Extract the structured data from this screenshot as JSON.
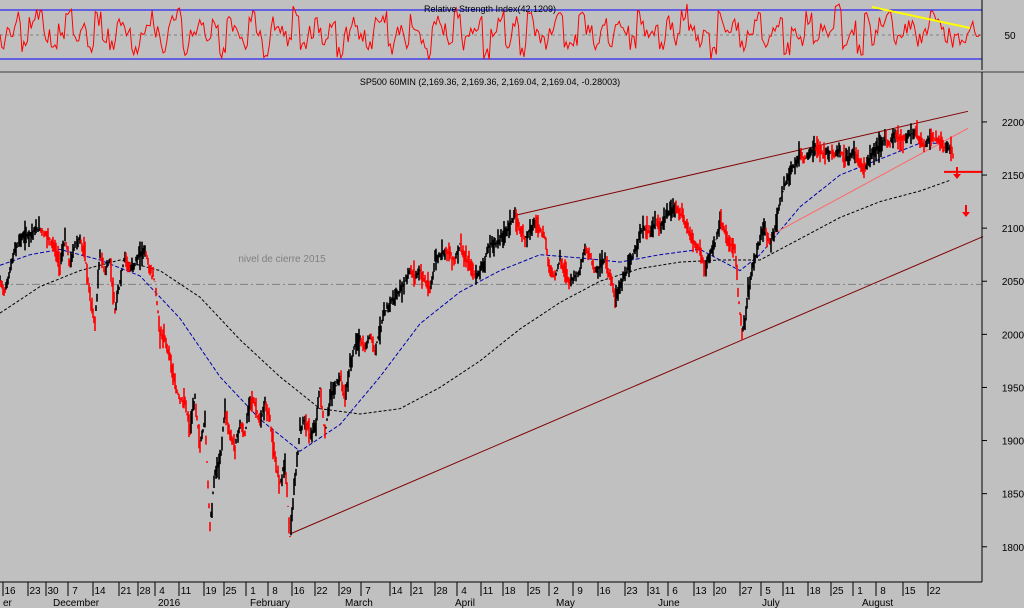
{
  "rsi_panel": {
    "title": "Relative Strength Index(42.1209)",
    "upper_level": 70,
    "mid_level": 50,
    "lower_level": 30,
    "y_tick_label": "50",
    "colors": {
      "upper": "#0000ff",
      "lower": "#0000ff",
      "mid": "#808080",
      "line": "#ff0000",
      "trendline": "#ffff00"
    }
  },
  "main_panel": {
    "title": "SP500 60MIN (2,169.36, 2,169.36, 2,169.04, 2,169.04, -0.28003)",
    "annotation": "nivel de cierre 2015",
    "reference_level": 2047
  },
  "chart_data": {
    "type": "line",
    "title": "SP500 60MIN (2,169.36, 2,169.36, 2,169.04, 2,169.04, -0.28003)",
    "ylim": [
      1780,
      2215
    ],
    "y_ticks": [
      "1800",
      "1850",
      "1900",
      "1950",
      "2000",
      "2050",
      "2100",
      "2150",
      "2200"
    ],
    "x_tick_labels": [
      "16",
      "23",
      "30",
      "7",
      "14",
      "21",
      "28",
      "4",
      "11",
      "19",
      "25",
      "1",
      "8",
      "16",
      "22",
      "29",
      "7",
      "14",
      "21",
      "28",
      "4",
      "11",
      "18",
      "25",
      "2",
      "9",
      "16",
      "23",
      "31",
      "6",
      "13",
      "20",
      "27",
      "5",
      "11",
      "18",
      "25",
      "1",
      "8",
      "15",
      "22"
    ],
    "month_labels": [
      "er",
      "December",
      "2016",
      "February",
      "March",
      "April",
      "May",
      "June",
      "July",
      "August"
    ],
    "series": [
      {
        "name": "SP500",
        "color": "#000000",
        "points": [
          [
            0,
            2050
          ],
          [
            5,
            2040
          ],
          [
            10,
            2060
          ],
          [
            15,
            2080
          ],
          [
            20,
            2090
          ],
          [
            30,
            2095
          ],
          [
            40,
            2100
          ],
          [
            50,
            2090
          ],
          [
            55,
            2080
          ],
          [
            60,
            2065
          ],
          [
            65,
            2090
          ],
          [
            70,
            2065
          ],
          [
            75,
            2085
          ],
          [
            80,
            2090
          ],
          [
            85,
            2075
          ],
          [
            90,
            2035
          ],
          [
            95,
            2010
          ],
          [
            100,
            2075
          ],
          [
            105,
            2060
          ],
          [
            110,
            2070
          ],
          [
            115,
            2020
          ],
          [
            120,
            2050
          ],
          [
            125,
            2075
          ],
          [
            130,
            2060
          ],
          [
            140,
            2075
          ],
          [
            145,
            2080
          ],
          [
            150,
            2060
          ],
          [
            155,
            2050
          ],
          [
            160,
            2000
          ],
          [
            165,
            1995
          ],
          [
            170,
            1980
          ],
          [
            175,
            1950
          ],
          [
            180,
            1940
          ],
          [
            185,
            1935
          ],
          [
            190,
            1910
          ],
          [
            195,
            1940
          ],
          [
            200,
            1895
          ],
          [
            205,
            1920
          ],
          [
            210,
            1820
          ],
          [
            215,
            1870
          ],
          [
            220,
            1880
          ],
          [
            225,
            1930
          ],
          [
            230,
            1905
          ],
          [
            235,
            1895
          ],
          [
            240,
            1915
          ],
          [
            245,
            1905
          ],
          [
            250,
            1940
          ],
          [
            255,
            1935
          ],
          [
            260,
            1915
          ],
          [
            265,
            1935
          ],
          [
            270,
            1920
          ],
          [
            275,
            1880
          ],
          [
            280,
            1860
          ],
          [
            285,
            1880
          ],
          [
            290,
            1810
          ],
          [
            295,
            1860
          ],
          [
            300,
            1910
          ],
          [
            305,
            1920
          ],
          [
            310,
            1905
          ],
          [
            315,
            1910
          ],
          [
            320,
            1950
          ],
          [
            325,
            1905
          ],
          [
            330,
            1940
          ],
          [
            335,
            1950
          ],
          [
            340,
            1960
          ],
          [
            345,
            1940
          ],
          [
            350,
            1970
          ],
          [
            355,
            1990
          ],
          [
            360,
            1995
          ],
          [
            365,
            1985
          ],
          [
            370,
            2000
          ],
          [
            375,
            1985
          ],
          [
            380,
            2005
          ],
          [
            385,
            2020
          ],
          [
            390,
            2030
          ],
          [
            395,
            2035
          ],
          [
            400,
            2040
          ],
          [
            405,
            2050
          ],
          [
            410,
            2060
          ],
          [
            415,
            2055
          ],
          [
            420,
            2060
          ],
          [
            425,
            2050
          ],
          [
            430,
            2040
          ],
          [
            435,
            2070
          ],
          [
            440,
            2075
          ],
          [
            445,
            2080
          ],
          [
            450,
            2075
          ],
          [
            455,
            2070
          ],
          [
            460,
            2085
          ],
          [
            465,
            2070
          ],
          [
            470,
            2065
          ],
          [
            475,
            2055
          ],
          [
            480,
            2060
          ],
          [
            485,
            2070
          ],
          [
            490,
            2085
          ],
          [
            495,
            2085
          ],
          [
            500,
            2090
          ],
          [
            505,
            2095
          ],
          [
            510,
            2105
          ],
          [
            515,
            2110
          ],
          [
            520,
            2100
          ],
          [
            525,
            2090
          ],
          [
            530,
            2100
          ],
          [
            535,
            2105
          ],
          [
            540,
            2100
          ],
          [
            545,
            2090
          ],
          [
            550,
            2060
          ],
          [
            555,
            2055
          ],
          [
            560,
            2070
          ],
          [
            565,
            2060
          ],
          [
            570,
            2050
          ],
          [
            575,
            2055
          ],
          [
            580,
            2060
          ],
          [
            585,
            2080
          ],
          [
            590,
            2075
          ],
          [
            595,
            2060
          ],
          [
            600,
            2065
          ],
          [
            605,
            2070
          ],
          [
            610,
            2055
          ],
          [
            615,
            2035
          ],
          [
            620,
            2045
          ],
          [
            625,
            2055
          ],
          [
            630,
            2065
          ],
          [
            635,
            2080
          ],
          [
            640,
            2095
          ],
          [
            645,
            2100
          ],
          [
            650,
            2095
          ],
          [
            655,
            2105
          ],
          [
            660,
            2100
          ],
          [
            665,
            2110
          ],
          [
            670,
            2115
          ],
          [
            675,
            2120
          ],
          [
            680,
            2115
          ],
          [
            685,
            2105
          ],
          [
            690,
            2095
          ],
          [
            695,
            2085
          ],
          [
            700,
            2080
          ],
          [
            705,
            2060
          ],
          [
            710,
            2075
          ],
          [
            715,
            2085
          ],
          [
            720,
            2105
          ],
          [
            725,
            2095
          ],
          [
            730,
            2085
          ],
          [
            735,
            2080
          ],
          [
            738,
            2040
          ],
          [
            742,
            2000
          ],
          [
            745,
            2010
          ],
          [
            748,
            2040
          ],
          [
            752,
            2060
          ],
          [
            756,
            2075
          ],
          [
            760,
            2090
          ],
          [
            765,
            2100
          ],
          [
            770,
            2085
          ],
          [
            775,
            2100
          ],
          [
            780,
            2125
          ],
          [
            785,
            2140
          ],
          [
            790,
            2155
          ],
          [
            795,
            2160
          ],
          [
            800,
            2170
          ],
          [
            805,
            2165
          ],
          [
            810,
            2170
          ],
          [
            815,
            2175
          ],
          [
            820,
            2172
          ],
          [
            825,
            2170
          ],
          [
            830,
            2172
          ],
          [
            835,
            2170
          ],
          [
            840,
            2174
          ],
          [
            845,
            2165
          ],
          [
            850,
            2168
          ],
          [
            855,
            2170
          ],
          [
            860,
            2162
          ],
          [
            865,
            2155
          ],
          [
            870,
            2168
          ],
          [
            875,
            2172
          ],
          [
            880,
            2178
          ],
          [
            885,
            2184
          ],
          [
            890,
            2180
          ],
          [
            895,
            2188
          ],
          [
            900,
            2185
          ],
          [
            905,
            2183
          ],
          [
            910,
            2188
          ],
          [
            915,
            2190
          ],
          [
            920,
            2182
          ],
          [
            925,
            2178
          ],
          [
            930,
            2186
          ],
          [
            935,
            2184
          ],
          [
            940,
            2180
          ],
          [
            945,
            2175
          ],
          [
            950,
            2175
          ],
          [
            953,
            2168
          ]
        ]
      }
    ],
    "moving_averages": [
      {
        "name": "MA short",
        "color": "#0000aa",
        "points": [
          [
            0,
            2065
          ],
          [
            30,
            2075
          ],
          [
            60,
            2080
          ],
          [
            100,
            2070
          ],
          [
            140,
            2055
          ],
          [
            180,
            2015
          ],
          [
            220,
            1960
          ],
          [
            260,
            1920
          ],
          [
            300,
            1890
          ],
          [
            340,
            1915
          ],
          [
            380,
            1960
          ],
          [
            420,
            2010
          ],
          [
            460,
            2040
          ],
          [
            500,
            2060
          ],
          [
            540,
            2075
          ],
          [
            580,
            2072
          ],
          [
            620,
            2068
          ],
          [
            660,
            2075
          ],
          [
            700,
            2080
          ],
          [
            740,
            2060
          ],
          [
            760,
            2075
          ],
          [
            800,
            2120
          ],
          [
            840,
            2150
          ],
          [
            880,
            2165
          ],
          [
            920,
            2180
          ],
          [
            950,
            2180
          ]
        ]
      },
      {
        "name": "MA long",
        "color": "#000000",
        "points": [
          [
            0,
            2020
          ],
          [
            40,
            2045
          ],
          [
            80,
            2060
          ],
          [
            120,
            2070
          ],
          [
            160,
            2060
          ],
          [
            200,
            2035
          ],
          [
            240,
            1995
          ],
          [
            280,
            1960
          ],
          [
            320,
            1930
          ],
          [
            360,
            1925
          ],
          [
            400,
            1930
          ],
          [
            440,
            1950
          ],
          [
            480,
            1975
          ],
          [
            520,
            2005
          ],
          [
            560,
            2030
          ],
          [
            600,
            2050
          ],
          [
            640,
            2062
          ],
          [
            680,
            2068
          ],
          [
            720,
            2070
          ],
          [
            760,
            2070
          ],
          [
            800,
            2090
          ],
          [
            840,
            2110
          ],
          [
            880,
            2125
          ],
          [
            920,
            2135
          ],
          [
            950,
            2145
          ]
        ]
      }
    ],
    "trendlines": [
      {
        "name": "upper channel",
        "color": "#800000",
        "from": [
          515,
          2112
        ],
        "to": [
          968,
          2210
        ]
      },
      {
        "name": "lower channel",
        "color": "#800000",
        "from": [
          290,
          1812
        ],
        "to": [
          983,
          2092
        ]
      },
      {
        "name": "short-term support",
        "color": "#ff6666",
        "from": [
          770,
          2093
        ],
        "to": [
          968,
          2194
        ]
      }
    ],
    "support_marker": {
      "level": 2153,
      "color": "#ff0000"
    },
    "rsi_values": [
      45,
      55,
      62,
      40,
      58,
      66,
      48,
      35,
      52,
      68,
      44,
      57,
      38,
      63,
      50,
      42,
      61,
      55,
      36,
      47,
      64,
      53,
      41,
      59,
      67,
      39,
      49,
      56,
      45,
      62,
      34,
      58,
      51,
      43,
      65,
      48,
      37,
      60,
      54,
      46,
      69,
      40,
      52,
      57,
      44,
      61,
      35,
      50,
      63,
      47,
      42,
      58,
      66,
      39,
      53,
      45,
      60,
      48,
      36,
      62,
      55,
      41,
      67,
      44,
      50,
      58,
      33,
      52,
      64,
      46,
      59,
      38,
      61,
      49,
      43,
      56,
      68,
      40,
      47,
      63,
      51,
      37,
      57,
      45,
      62,
      54,
      42,
      65,
      48,
      55,
      39,
      60,
      46,
      68,
      52,
      44,
      58,
      36,
      63,
      50,
      57,
      41,
      49,
      66,
      45,
      53,
      61,
      38,
      55,
      47,
      64,
      42,
      59,
      51,
      68,
      44,
      56,
      40,
      62,
      48,
      57,
      66,
      43,
      52,
      60,
      46,
      54,
      63,
      58,
      50,
      45,
      39,
      55,
      48
    ]
  }
}
